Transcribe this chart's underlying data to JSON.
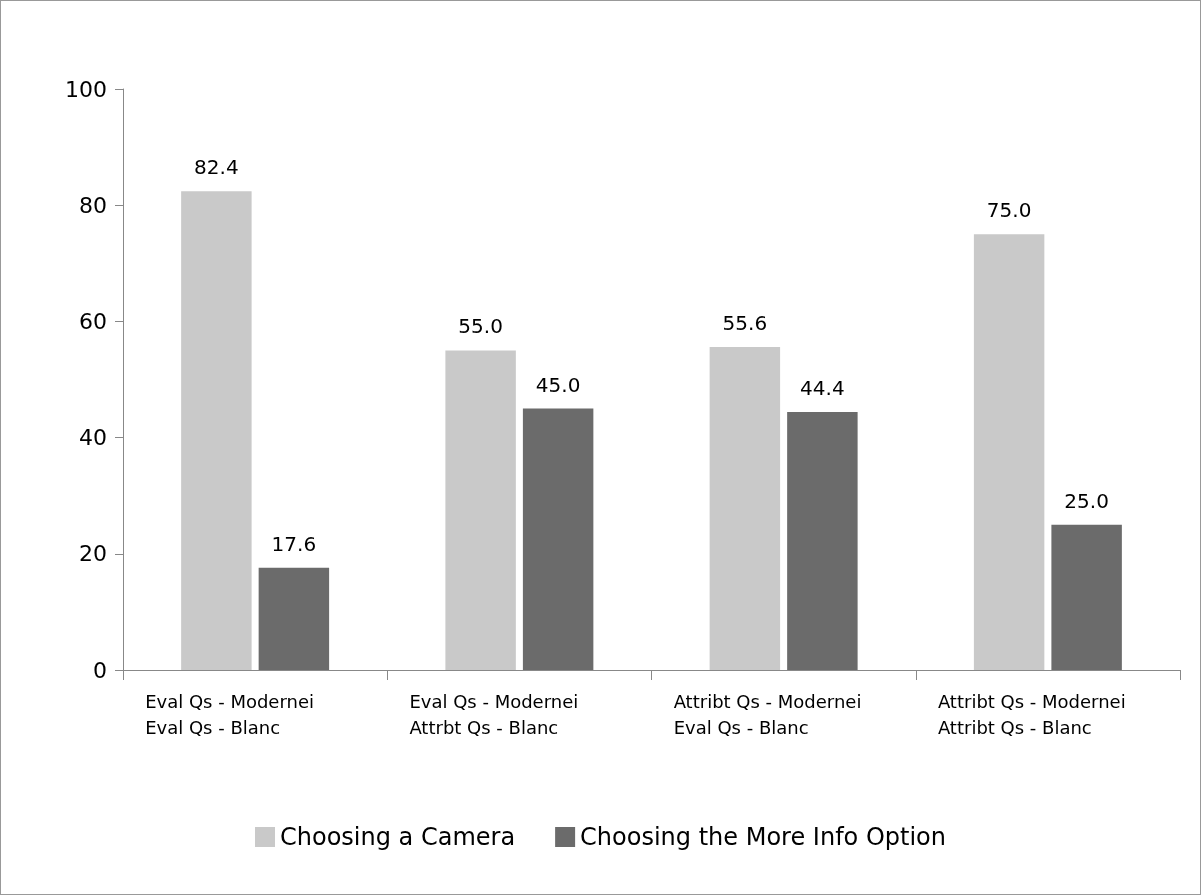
{
  "chart_data": {
    "type": "bar",
    "categories": [
      "Eval Qs - Modernei\nEval Qs - Blanc",
      "Eval Qs - Modernei\nAttrbt Qs - Blanc",
      "Attribt Qs - Modernei\nEval Qs - Blanc",
      "Attribt Qs - Modernei\nAttribt Qs - Blanc"
    ],
    "series": [
      {
        "name": "Choosing a Camera",
        "color": "#c9c9c9",
        "values": [
          82.4,
          55.0,
          55.6,
          75.0
        ]
      },
      {
        "name": "Choosing the More Info Option",
        "color": "#6b6b6b",
        "values": [
          17.6,
          45.0,
          44.4,
          25.0
        ]
      }
    ],
    "ylim": [
      0,
      100
    ],
    "yticks": [
      0,
      20,
      40,
      60,
      80,
      100
    ],
    "grid": false,
    "legend": "bottom",
    "value_labels": [
      [
        "82.4",
        "55.0",
        "55.6",
        "75.0"
      ],
      [
        "17.6",
        "45.0",
        "44.4",
        "25.0"
      ]
    ]
  }
}
